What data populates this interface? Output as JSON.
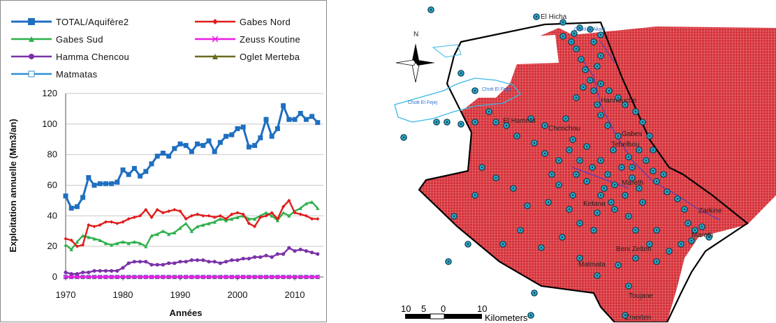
{
  "chart_data": {
    "type": "line",
    "title": "",
    "xlabel": "Années",
    "ylabel": "Exploitation  annuelle  (Mm3/an)",
    "xlim": [
      1970,
      2015
    ],
    "ylim": [
      0,
      120
    ],
    "x_ticks": [
      1970,
      1980,
      1990,
      2000,
      2010
    ],
    "y_ticks": [
      0,
      20,
      40,
      60,
      80,
      100,
      120
    ],
    "grid": "horizontal",
    "legend_position": "top",
    "x": [
      1970,
      1971,
      1972,
      1973,
      1974,
      1975,
      1976,
      1977,
      1978,
      1979,
      1980,
      1981,
      1982,
      1983,
      1984,
      1985,
      1986,
      1987,
      1988,
      1989,
      1990,
      1991,
      1992,
      1993,
      1994,
      1995,
      1996,
      1997,
      1998,
      1999,
      2000,
      2001,
      2002,
      2003,
      2004,
      2005,
      2006,
      2007,
      2008,
      2009,
      2010,
      2011,
      2012,
      2013,
      2014
    ],
    "series": [
      {
        "name": "TOTAL/Aquifère2",
        "color": "#1f6fc0",
        "marker": "square",
        "values": [
          53,
          45,
          46,
          52,
          65,
          60,
          61,
          61,
          61,
          62,
          70,
          67,
          71,
          66,
          69,
          74,
          79,
          81,
          79,
          84,
          87,
          86,
          82,
          87,
          86,
          89,
          82,
          88,
          92,
          93,
          97,
          98,
          85,
          86,
          91,
          103,
          92,
          97,
          112,
          103,
          103,
          107,
          103,
          105,
          101
        ]
      },
      {
        "name": "Gabes Nord",
        "color": "#e01c1c",
        "marker": "diamond",
        "values": [
          25,
          24,
          20,
          21,
          34,
          33,
          34,
          36,
          36,
          35,
          36,
          38,
          39,
          40,
          44,
          39,
          44,
          42,
          43,
          44,
          43,
          38,
          40,
          41,
          40,
          40,
          39,
          40,
          38,
          41,
          42,
          41,
          35,
          33,
          39,
          40,
          42,
          38,
          46,
          50,
          42,
          41,
          40,
          38,
          38
        ]
      },
      {
        "name": "Gabes Sud",
        "color": "#2db04b",
        "marker": "triangle",
        "values": [
          21,
          18,
          23,
          27,
          26,
          25,
          24,
          22,
          21,
          22,
          23,
          22,
          23,
          22,
          20,
          27,
          28,
          30,
          28,
          29,
          32,
          35,
          30,
          33,
          34,
          35,
          36,
          38,
          37,
          38,
          39,
          40,
          38,
          38,
          40,
          42,
          40,
          37,
          42,
          40,
          43,
          45,
          48,
          49,
          45
        ]
      },
      {
        "name": "Zeuss Koutine",
        "color": "#ea1ce6",
        "marker": "x",
        "values": [
          0,
          0,
          0,
          0,
          0,
          0,
          0,
          0,
          0,
          0,
          0,
          0,
          0,
          0,
          0,
          0,
          0,
          0,
          0,
          0,
          0,
          0,
          0,
          0,
          0,
          0,
          0,
          0,
          0,
          0,
          0,
          0,
          0,
          0,
          0,
          0,
          0,
          0,
          0,
          0,
          0,
          0,
          0,
          0,
          0
        ]
      },
      {
        "name": "Hamma Chencou",
        "color": "#7a31a8",
        "marker": "circle",
        "values": [
          3,
          2,
          2,
          3,
          3,
          4,
          4,
          4,
          4,
          4,
          6,
          9,
          10,
          10,
          10,
          8,
          8,
          8,
          9,
          9,
          10,
          10,
          11,
          11,
          11,
          10,
          10,
          9,
          10,
          11,
          11,
          12,
          12,
          13,
          13,
          14,
          13,
          15,
          15,
          19,
          17,
          18,
          17,
          16,
          15
        ]
      },
      {
        "name": "Oglet Merteba",
        "color": "#6a6a1e",
        "marker": "triangle",
        "values": [
          0,
          0,
          0,
          0,
          0,
          0,
          0,
          0,
          0,
          0,
          0,
          0,
          0,
          0,
          0,
          0,
          0,
          0,
          0,
          0,
          0,
          0,
          0,
          0,
          0,
          0,
          0,
          0,
          0,
          0,
          0,
          0,
          0,
          0,
          0,
          0,
          0,
          0,
          0,
          0,
          0,
          0,
          0,
          0,
          0
        ]
      },
      {
        "name": "Matmatas",
        "color": "#2c8fd6",
        "marker": "open-square",
        "values": [
          0,
          0,
          0,
          0,
          0,
          0,
          0,
          0,
          0,
          0,
          0,
          0,
          0,
          0,
          0,
          0,
          0,
          0,
          0,
          0,
          0,
          0,
          0,
          0,
          0,
          0,
          0,
          0,
          0,
          0,
          0,
          0,
          0,
          0,
          0,
          0,
          0,
          0,
          0,
          0,
          0,
          0,
          0,
          0,
          0
        ]
      }
    ]
  },
  "map": {
    "north_label": "N",
    "place_names": [
      "El Hicha",
      "Oued El Akarit",
      "Chott El Fejej",
      "Chott El Fejej",
      "Hannouche",
      "El Hamma",
      "Chenchou",
      "Gabes",
      "Tebelbou",
      "Mareth",
      "Ketana",
      "Matmata",
      "Beni Zelten",
      "Zarkine",
      "Toujane",
      "Zmerten",
      "Mareth"
    ],
    "scale_labels": [
      "10",
      "5",
      "0",
      "10"
    ],
    "scale_unit": "Kilometers",
    "colors": {
      "aquifer": "#d6323a",
      "wells": "#2aa7c9",
      "water": "#39b7e6",
      "rivers": "#3b3bd0"
    }
  }
}
